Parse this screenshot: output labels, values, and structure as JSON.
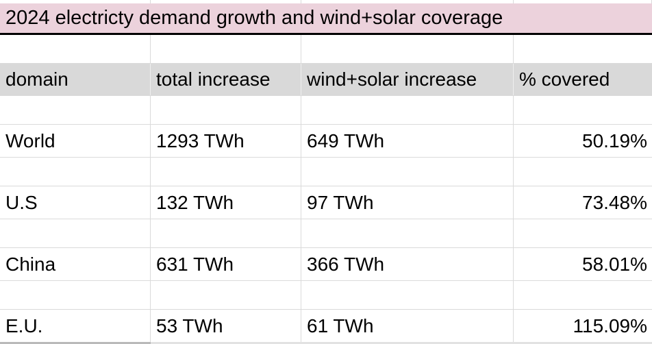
{
  "sheet_title": "2024 electricty demand growth and wind+solar coverage",
  "header": {
    "columns": [
      "domain",
      "total increase",
      "wind+solar increase",
      "% covered"
    ]
  },
  "rows": [
    {
      "domain": "World",
      "total_increase": "1293 TWh",
      "wind_solar_increase": "649 TWh",
      "pct_covered": "50.19%"
    },
    {
      "domain": "U.S",
      "total_increase": "132 TWh",
      "wind_solar_increase": "97 TWh",
      "pct_covered": "73.48%"
    },
    {
      "domain": "China",
      "total_increase": "631 TWh",
      "wind_solar_increase": "366 TWh",
      "pct_covered": "58.01%"
    },
    {
      "domain": "E.U.",
      "total_increase": "53 TWh",
      "wind_solar_increase": "61 TWh",
      "pct_covered": "115.09%"
    }
  ],
  "colors": {
    "title_background": "#ecd2dc",
    "header_background": "#d9d9d9",
    "gridline": "#dadada",
    "title_bottom_border": "#000000",
    "text": "#000000"
  },
  "chart_data": {
    "type": "table",
    "title": "2024 electricty demand growth and wind+solar coverage",
    "columns": [
      "domain",
      "total increase",
      "wind+solar increase",
      "% covered"
    ],
    "rows": [
      [
        "World",
        "1293 TWh",
        "649 TWh",
        "50.19%"
      ],
      [
        "U.S",
        "132 TWh",
        "97 TWh",
        "73.48%"
      ],
      [
        "China",
        "631 TWh",
        "366 TWh",
        "58.01%"
      ],
      [
        "E.U.",
        "53 TWh",
        "61 TWh",
        "115.09%"
      ]
    ]
  }
}
